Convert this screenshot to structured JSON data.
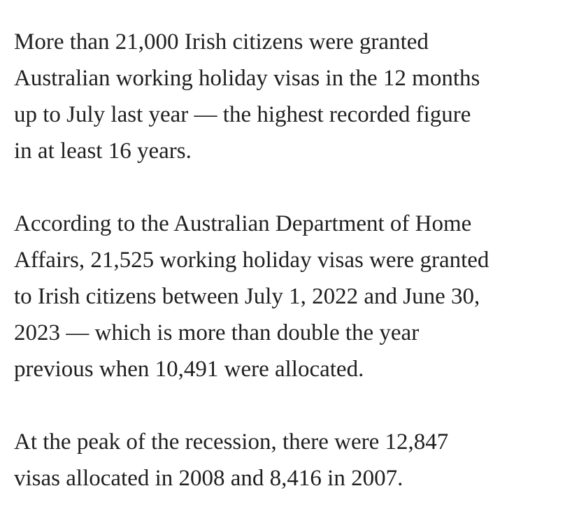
{
  "article": {
    "paragraphs": [
      [
        "More than 21,000 Irish citizens were granted",
        "Australian working holiday visas in the 12 months",
        "up to July last year — the highest recorded figure",
        "in at least 16 years."
      ],
      [
        "According to the Australian Department of Home",
        "Affairs, 21,525 working holiday visas were granted",
        "to Irish citizens between July 1, 2022 and June 30,",
        "2023 — which is more than double the year",
        "previous when 10,491 were allocated."
      ],
      [
        "At the peak of the recession, there were 12,847",
        "visas allocated in 2008 and 8,416 in 2007."
      ]
    ]
  }
}
